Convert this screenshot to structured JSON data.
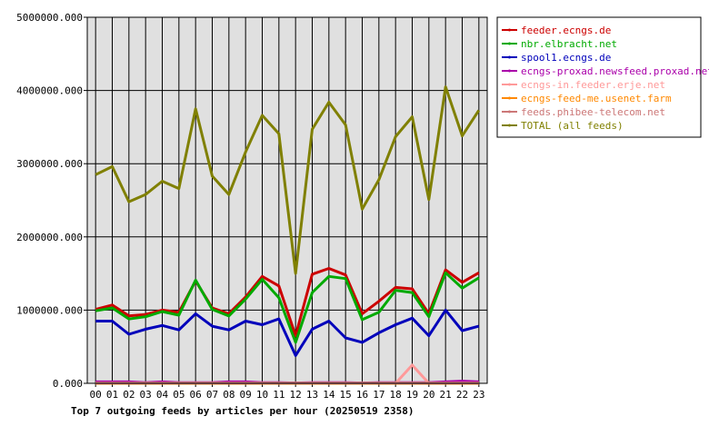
{
  "chart_data": {
    "type": "line",
    "title": "Top 7 outgoing feeds by articles per hour (20250519 2358)",
    "xlabel": "",
    "ylabel": "",
    "ylim": [
      0,
      5000000
    ],
    "yticks": [
      "0.000",
      "1000000.000",
      "2000000.000",
      "3000000.000",
      "4000000.000",
      "5000000.000"
    ],
    "ytick_values": [
      0,
      1000000,
      2000000,
      3000000,
      4000000,
      5000000
    ],
    "grid": true,
    "legend_position": "right",
    "background": "#e0e0e0",
    "x": [
      "00",
      "01",
      "02",
      "03",
      "04",
      "05",
      "06",
      "07",
      "08",
      "09",
      "10",
      "11",
      "12",
      "13",
      "14",
      "15",
      "16",
      "17",
      "18",
      "19",
      "20",
      "21",
      "22",
      "23"
    ],
    "series": [
      {
        "name": "feeder.ecngs.de",
        "color": "#cc0000",
        "values": [
          1010000,
          1070000,
          920000,
          940000,
          1000000,
          970000,
          1400000,
          1030000,
          950000,
          1180000,
          1460000,
          1330000,
          650000,
          1490000,
          1570000,
          1480000,
          950000,
          1120000,
          1310000,
          1290000,
          950000,
          1550000,
          1380000,
          1510000
        ]
      },
      {
        "name": "nbr.elbracht.net",
        "color": "#00aa00",
        "values": [
          990000,
          1030000,
          880000,
          910000,
          980000,
          930000,
          1410000,
          1010000,
          920000,
          1150000,
          1420000,
          1170000,
          560000,
          1240000,
          1460000,
          1430000,
          870000,
          970000,
          1270000,
          1240000,
          910000,
          1510000,
          1300000,
          1440000
        ]
      },
      {
        "name": "spool1.ecngs.de",
        "color": "#0000bb",
        "values": [
          850000,
          850000,
          670000,
          740000,
          790000,
          730000,
          950000,
          780000,
          730000,
          850000,
          800000,
          880000,
          380000,
          740000,
          850000,
          620000,
          560000,
          690000,
          800000,
          890000,
          650000,
          1000000,
          720000,
          780000
        ]
      },
      {
        "name": "ecngs-proxad.newsfeed.proxad.net",
        "color": "#aa00aa",
        "values": [
          20000,
          20000,
          20000,
          10000,
          20000,
          10000,
          10000,
          10000,
          20000,
          20000,
          10000,
          10000,
          5000,
          10000,
          10000,
          10000,
          5000,
          10000,
          10000,
          10000,
          10000,
          20000,
          30000,
          20000
        ]
      },
      {
        "name": "ecngs-in.feeder.erje.net",
        "color": "#ff9999",
        "values": [
          0,
          0,
          0,
          0,
          0,
          0,
          0,
          0,
          0,
          0,
          0,
          0,
          0,
          0,
          0,
          0,
          0,
          0,
          0,
          250000,
          0,
          0,
          0,
          0
        ]
      },
      {
        "name": "ecngs-feed-me.usenet.farm",
        "color": "#ff8800",
        "values": [
          0,
          0,
          0,
          0,
          0,
          0,
          0,
          0,
          0,
          0,
          0,
          0,
          0,
          0,
          0,
          0,
          0,
          0,
          0,
          0,
          0,
          0,
          0,
          0
        ]
      },
      {
        "name": "feeds.phibee-telecom.net",
        "color": "#cc7777",
        "values": [
          5000,
          5000,
          5000,
          5000,
          5000,
          5000,
          5000,
          5000,
          5000,
          5000,
          5000,
          5000,
          5000,
          5000,
          5000,
          5000,
          5000,
          5000,
          5000,
          5000,
          5000,
          5000,
          5000,
          5000
        ]
      },
      {
        "name": "TOTAL (all feeds)",
        "color": "#808000",
        "values": [
          2850000,
          2960000,
          2480000,
          2580000,
          2760000,
          2660000,
          3750000,
          2830000,
          2580000,
          3160000,
          3660000,
          3410000,
          1500000,
          3470000,
          3840000,
          3530000,
          2380000,
          2780000,
          3370000,
          3640000,
          2510000,
          4050000,
          3380000,
          3730000
        ]
      }
    ]
  }
}
